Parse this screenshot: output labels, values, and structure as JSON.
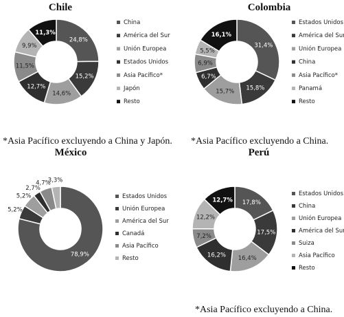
{
  "colors": {
    "c1": "#555555",
    "c2": "#3a3a3a",
    "c3": "#9e9e9e",
    "c4": "#2f2f2f",
    "c5": "#b4b4b4",
    "c6": "#8a8a8a",
    "c7": "#111111"
  },
  "chart_data": [
    {
      "type": "pie",
      "donut": true,
      "title": "Chile",
      "note": "*Asia Pacífico excluyendo a China y Japón.",
      "slices": [
        {
          "name": "China",
          "value": 24.8,
          "label": "24,8%",
          "color": "#555555"
        },
        {
          "name": "América del Sur",
          "value": 15.2,
          "label": "15,2%",
          "color": "#3a3a3a"
        },
        {
          "name": "Unión Europea",
          "value": 14.6,
          "label": "14,6%",
          "color": "#9e9e9e"
        },
        {
          "name": "Estados Unidos",
          "value": 12.7,
          "label": "12,7%",
          "color": "#2f2f2f"
        },
        {
          "name": "Asia Pacífico*",
          "value": 11.5,
          "label": "11,5%",
          "color": "#8a8a8a"
        },
        {
          "name": "Japón",
          "value": 9.9,
          "label": "9,9%",
          "color": "#b4b4b4"
        },
        {
          "name": "Resto",
          "value": 11.3,
          "label": "11,3%",
          "color": "#111111"
        }
      ]
    },
    {
      "type": "pie",
      "donut": true,
      "title": "Colombia",
      "note": "*Asia Pacífico excluyendo a China.",
      "slices": [
        {
          "name": "Estados Unidos",
          "value": 31.4,
          "label": "31,4%",
          "color": "#555555"
        },
        {
          "name": "América del Sur",
          "value": 15.8,
          "label": "15,8%",
          "color": "#3a3a3a"
        },
        {
          "name": "Unión Europea",
          "value": 15.7,
          "label": "15,7%",
          "color": "#9e9e9e"
        },
        {
          "name": "China",
          "value": 6.7,
          "label": "6,7%",
          "color": "#2f2f2f"
        },
        {
          "name": "Asia Pacífico*",
          "value": 6.9,
          "label": "6,9%",
          "color": "#8a8a8a"
        },
        {
          "name": "Panamá",
          "value": 5.5,
          "label": "5,5%",
          "color": "#b4b4b4"
        },
        {
          "name": "Resto",
          "value": 16.1,
          "label": "16,1%",
          "color": "#111111"
        }
      ]
    },
    {
      "type": "pie",
      "donut": true,
      "title": "México",
      "note": "",
      "slices": [
        {
          "name": "Estados Unidos",
          "value": 78.9,
          "label": "78,9%",
          "color": "#555555"
        },
        {
          "name": "Unión Europea",
          "value": 5.2,
          "label": "5,2%",
          "color": "#3a3a3a"
        },
        {
          "name": "América del Sur",
          "value": 5.2,
          "label": "5,2%",
          "color": "#9e9e9e"
        },
        {
          "name": "Canadá",
          "value": 2.7,
          "label": "2,7%",
          "color": "#2f2f2f"
        },
        {
          "name": "Asia Pacífico",
          "value": 4.7,
          "label": "4,7%",
          "color": "#8a8a8a"
        },
        {
          "name": "Resto",
          "value": 3.3,
          "label": "3,3%",
          "color": "#b4b4b4"
        }
      ]
    },
    {
      "type": "pie",
      "donut": true,
      "title": "Perú",
      "note": "*Asia Pacífico excluyendo a China.",
      "slices": [
        {
          "name": "Estados Unidos",
          "value": 17.8,
          "label": "17,8%",
          "color": "#555555"
        },
        {
          "name": "China",
          "value": 17.5,
          "label": "17,5%",
          "color": "#3a3a3a"
        },
        {
          "name": "Unión Europea",
          "value": 16.4,
          "label": "16,4%",
          "color": "#9e9e9e"
        },
        {
          "name": "América del Sur",
          "value": 16.2,
          "label": "16,2%",
          "color": "#2f2f2f"
        },
        {
          "name": "Suiza",
          "value": 7.2,
          "label": "7,2%",
          "color": "#8a8a8a"
        },
        {
          "name": "Asia Pacífico",
          "value": 12.2,
          "label": "12,2%",
          "color": "#b4b4b4"
        },
        {
          "name": "Resto",
          "value": 12.7,
          "label": "12,7%",
          "color": "#111111"
        }
      ]
    }
  ]
}
